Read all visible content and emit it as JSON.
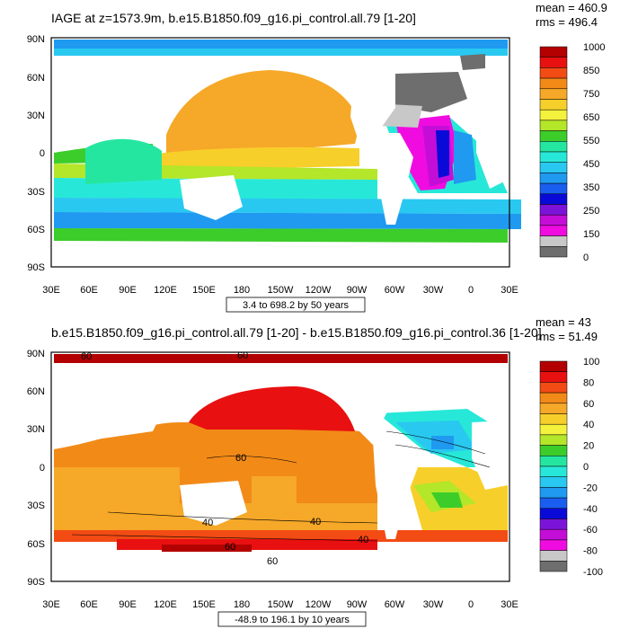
{
  "panels": [
    {
      "title": "IAGE at z=1573.9m, b.e15.B1850.f09_g16.pi_control.all.79 [1-20]",
      "mean": "mean = 460.9",
      "rms": "rms = 496.4",
      "contour_note": "3.4 to 698.2 by 50 years",
      "lat_ticks": [
        "90N",
        "60N",
        "30N",
        "0",
        "30S",
        "60S",
        "90S"
      ],
      "lon_ticks": [
        "30E",
        "60E",
        "90E",
        "120E",
        "150E",
        "180",
        "150W",
        "120W",
        "90W",
        "60W",
        "30W",
        "0",
        "30E"
      ],
      "colorbar": {
        "labels": [
          "1000",
          "850",
          "750",
          "650",
          "550",
          "450",
          "350",
          "250",
          "150",
          "0"
        ],
        "colors": [
          "#b30000",
          "#e81010",
          "#f24b14",
          "#f28a18",
          "#f6a828",
          "#f7cf2a",
          "#f4f23c",
          "#b4e629",
          "#3ccd2a",
          "#25e6a0",
          "#27e8d8",
          "#29c8f0",
          "#1f9af0",
          "#1a5ef0",
          "#0a0ad8",
          "#7b14d8",
          "#c40ed8",
          "#f00ce0",
          "#c8c8c8",
          "#6e6e6e"
        ]
      }
    },
    {
      "title": "b.e15.B1850.f09_g16.pi_control.all.79 [1-20] - b.e15.B1850.f09_g16.pi_control.36 [1-20]",
      "mean": "mean = 43",
      "rms": "rms = 51.49",
      "contour_note": "-48.9 to 196.1 by 10 years",
      "lat_ticks": [
        "90N",
        "60N",
        "30N",
        "0",
        "30S",
        "60S",
        "90S"
      ],
      "lon_ticks": [
        "30E",
        "60E",
        "90E",
        "120E",
        "150E",
        "180",
        "150W",
        "120W",
        "90W",
        "60W",
        "30W",
        "0",
        "30E"
      ],
      "contour_labels": [
        "60",
        "40",
        "40",
        "40",
        "60",
        "60",
        "60",
        "60"
      ],
      "colorbar": {
        "labels": [
          "100",
          "80",
          "60",
          "40",
          "20",
          "0",
          "-20",
          "-40",
          "-60",
          "-80",
          "-100"
        ],
        "colors": [
          "#b30000",
          "#e81010",
          "#f24b14",
          "#f28a18",
          "#f6a828",
          "#f7cf2a",
          "#f4f23c",
          "#b4e629",
          "#3ccd2a",
          "#25e6a0",
          "#27e8d8",
          "#29c8f0",
          "#1f9af0",
          "#1a5ef0",
          "#0a0ad8",
          "#7b14d8",
          "#c40ed8",
          "#f00ce0",
          "#c8c8c8",
          "#6e6e6e"
        ]
      }
    }
  ]
}
